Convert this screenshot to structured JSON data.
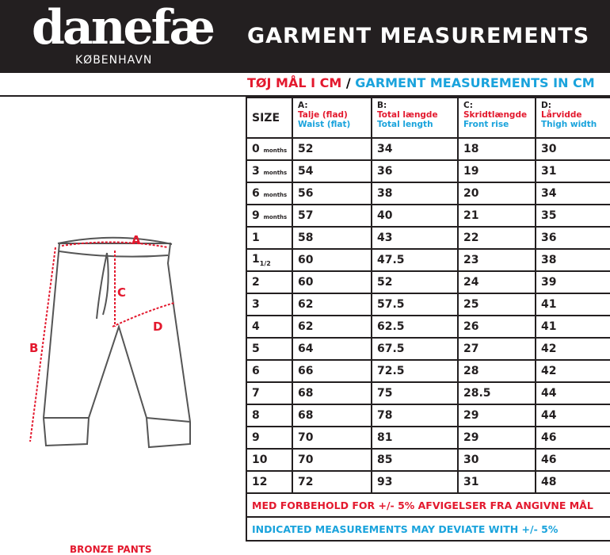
{
  "header": {
    "brand": "danefæ",
    "city": "KØBENHAVN",
    "title": "GARMENT MEASUREMENTS"
  },
  "subtitle": {
    "danish": "TØJ MÅL I CM",
    "separator": "/",
    "english": "GARMENT MEASUREMENTS IN CM"
  },
  "diagram": {
    "labels": [
      "A",
      "B",
      "C",
      "D"
    ],
    "product": "BRONZE PANTS"
  },
  "table": {
    "size_header": "SIZE",
    "columns": [
      {
        "letter": "A:",
        "danish": "Talje (flad)",
        "english": "Waist (flat)"
      },
      {
        "letter": "B:",
        "danish": "Total længde",
        "english": "Total length"
      },
      {
        "letter": "C:",
        "danish": "Skridtlængde",
        "english": "Front rise"
      },
      {
        "letter": "D:",
        "danish": "Lårvidde",
        "english": "Thigh width"
      }
    ],
    "rows": [
      {
        "size": "0",
        "unit": "months",
        "values": [
          52,
          34,
          18,
          30
        ]
      },
      {
        "size": "3",
        "unit": "months",
        "values": [
          54,
          36,
          19,
          31
        ]
      },
      {
        "size": "6",
        "unit": "months",
        "values": [
          56,
          38,
          20,
          34
        ]
      },
      {
        "size": "9",
        "unit": "months",
        "values": [
          57,
          40,
          21,
          35
        ]
      },
      {
        "size": "1",
        "values": [
          58,
          43,
          22,
          36
        ]
      },
      {
        "size": "1",
        "sub": "1/2",
        "values": [
          60,
          47.5,
          23,
          38
        ]
      },
      {
        "size": "2",
        "values": [
          60,
          52,
          24,
          39
        ]
      },
      {
        "size": "3",
        "values": [
          62,
          57.5,
          25,
          41
        ]
      },
      {
        "size": "4",
        "values": [
          62,
          62.5,
          26,
          41
        ]
      },
      {
        "size": "5",
        "values": [
          64,
          67.5,
          27,
          42
        ]
      },
      {
        "size": "6",
        "values": [
          66,
          72.5,
          28,
          42
        ]
      },
      {
        "size": "7",
        "values": [
          68,
          75,
          28.5,
          44
        ]
      },
      {
        "size": "8",
        "values": [
          68,
          78,
          29,
          44
        ]
      },
      {
        "size": "9",
        "values": [
          70,
          81,
          29,
          46
        ]
      },
      {
        "size": "10",
        "values": [
          70,
          85,
          30,
          46
        ]
      },
      {
        "size": "12",
        "values": [
          72,
          93,
          31,
          48
        ]
      }
    ],
    "note_danish": "MED FORBEHOLD FOR +/- 5% AFVIGELSER FRA ANGIVNE MÅL",
    "note_english": "INDICATED MEASUREMENTS MAY DEVIATE WITH +/- 5%"
  }
}
